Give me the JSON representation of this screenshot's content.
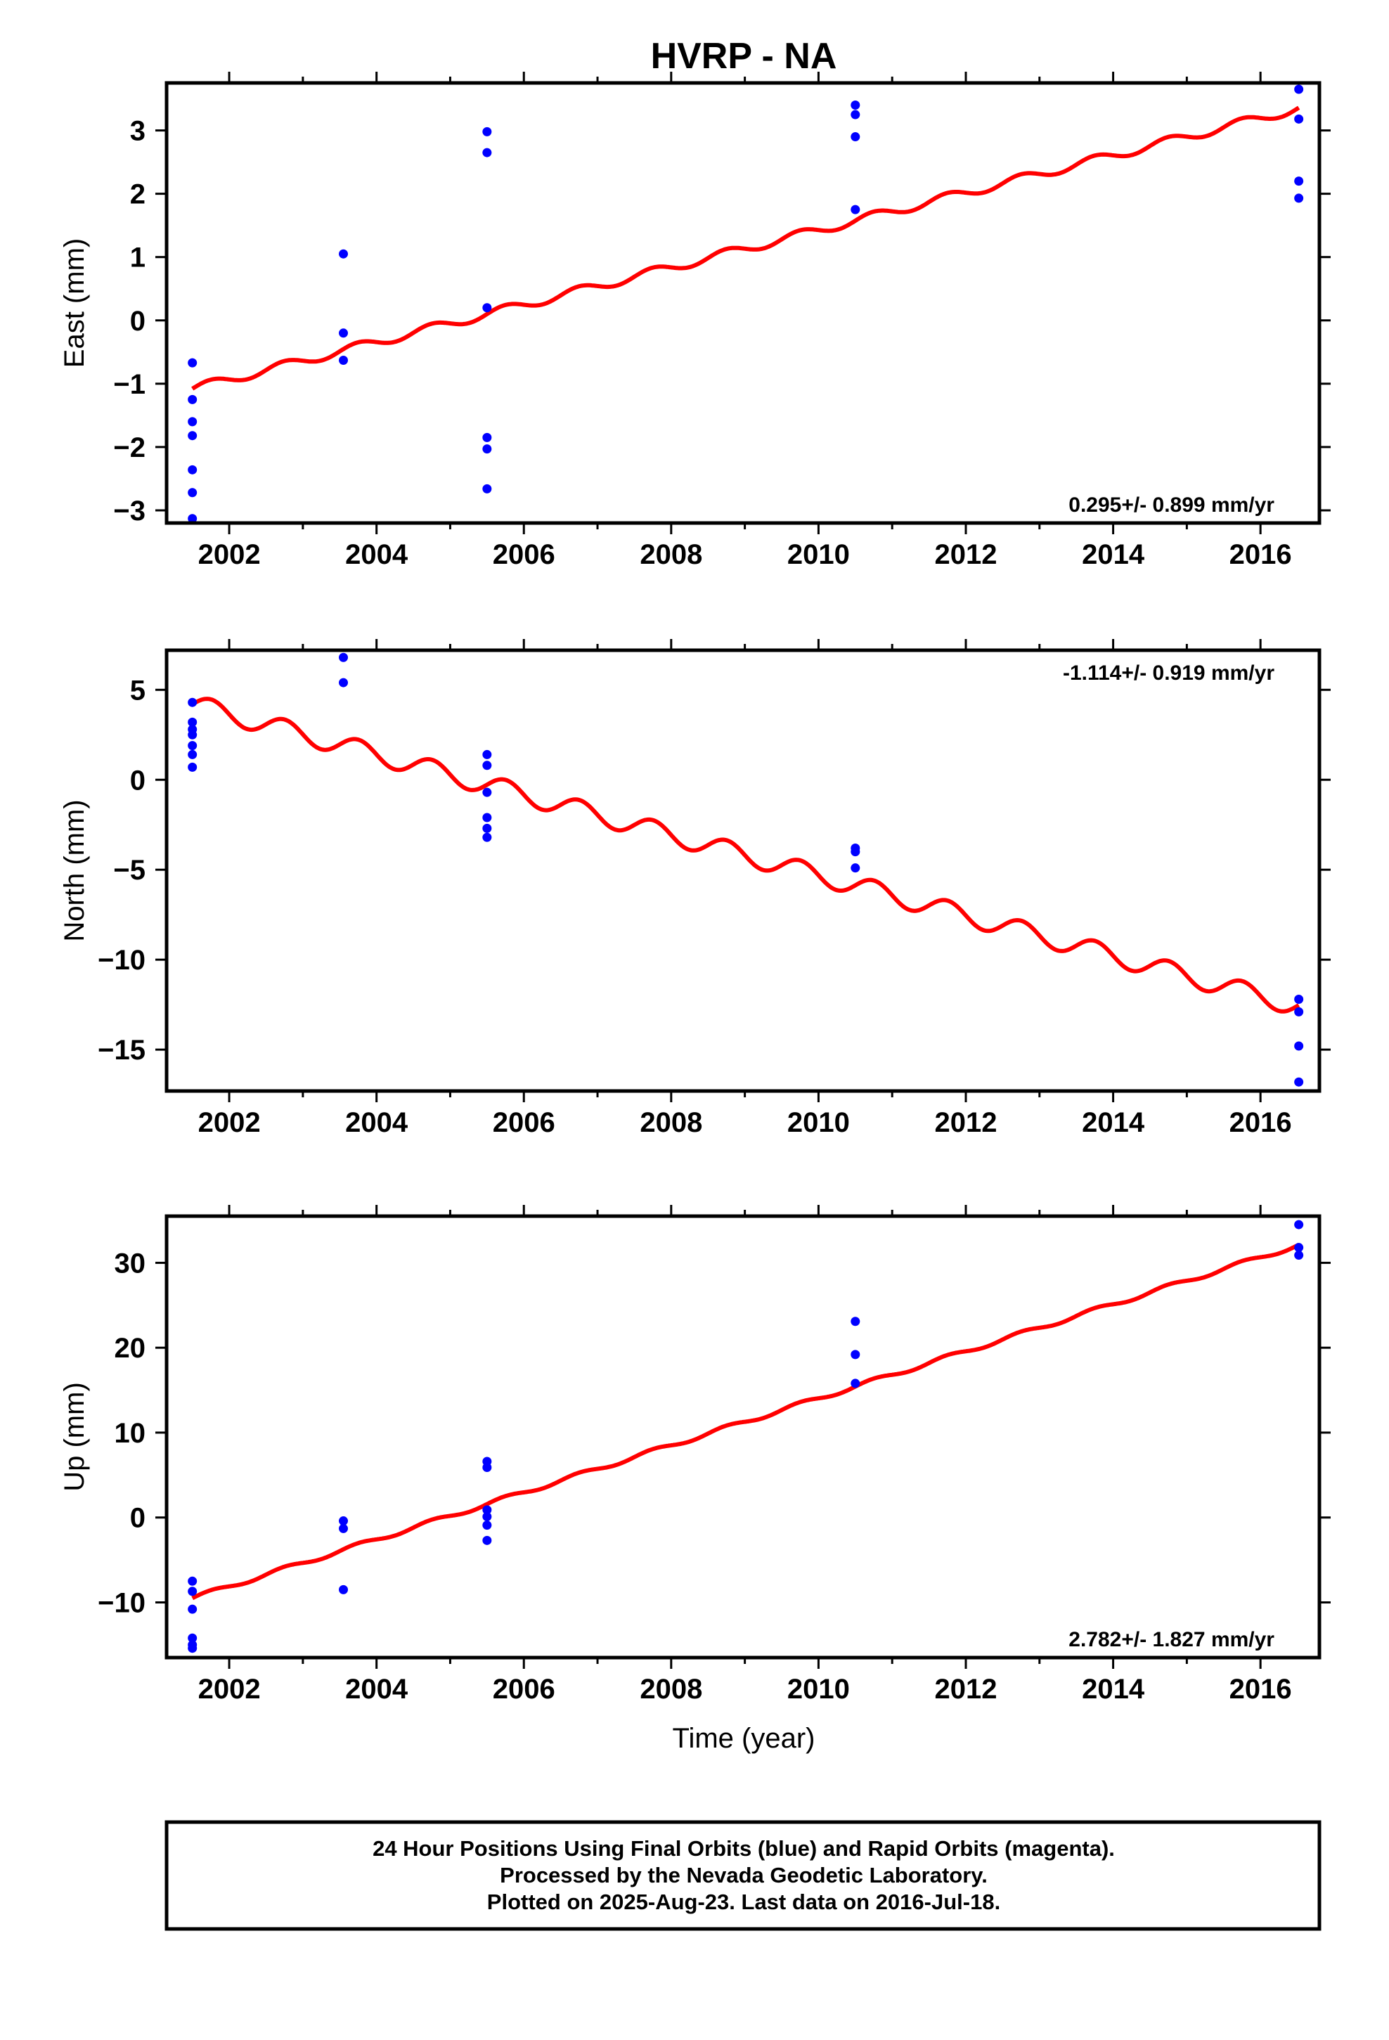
{
  "title": "HVRP - NA",
  "xlabel": "Time (year)",
  "colors": {
    "data": "#0000ff",
    "model": "#ff0000",
    "frame": "#000000"
  },
  "footer": {
    "lines": [
      "24 Hour Positions Using Final Orbits (blue) and Rapid Orbits (magenta).",
      "Processed by the Nevada Geodetic Laboratory.",
      "Plotted on 2025-Aug-23. Last data on 2016-Jul-18."
    ]
  },
  "chart_data": [
    {
      "type": "scatter",
      "ylabel": "East (mm)",
      "rate_label": "0.295+/- 0.899 mm/yr",
      "rate_position": "bottom-right",
      "xlim": [
        2001.15,
        2016.8
      ],
      "ylim": [
        -3.2,
        3.75
      ],
      "xticks": [
        2002,
        2004,
        2006,
        2008,
        2010,
        2012,
        2014,
        2016
      ],
      "yticks": [
        -3,
        -2,
        -1,
        0,
        1,
        2,
        3
      ],
      "series": [
        {
          "kind": "points",
          "x": [
            2001.5,
            2001.5,
            2001.5,
            2001.5,
            2001.5,
            2001.5,
            2001.5,
            2003.55,
            2003.55,
            2003.55,
            2005.5,
            2005.5,
            2005.5,
            2005.5,
            2005.5,
            2005.5,
            2010.5,
            2010.5,
            2010.5,
            2010.5,
            2016.52,
            2016.52,
            2016.52,
            2016.52
          ],
          "y": [
            -0.67,
            -1.25,
            -1.6,
            -1.82,
            -2.36,
            -2.72,
            -3.13,
            1.05,
            -0.2,
            -0.63,
            2.98,
            2.65,
            0.2,
            -1.85,
            -2.03,
            -2.66,
            3.4,
            3.25,
            2.9,
            1.75,
            3.65,
            3.18,
            2.2,
            1.93
          ]
        },
        {
          "kind": "model",
          "start": [
            2001.5,
            -1.08
          ],
          "end": [
            2016.52,
            3.35
          ],
          "annual_amplitude": 0.07,
          "semiannual_amplitude": 0
        }
      ]
    },
    {
      "type": "scatter",
      "ylabel": "North (mm)",
      "rate_label": "-1.114+/- 0.919 mm/yr",
      "rate_position": "top-right",
      "xlim": [
        2001.15,
        2016.8
      ],
      "ylim": [
        -17.3,
        7.2
      ],
      "xticks": [
        2002,
        2004,
        2006,
        2008,
        2010,
        2012,
        2014,
        2016
      ],
      "yticks": [
        -15,
        -10,
        -5,
        0,
        5
      ],
      "series": [
        {
          "kind": "points",
          "x": [
            2001.5,
            2001.5,
            2001.5,
            2001.5,
            2001.5,
            2001.5,
            2001.5,
            2003.55,
            2003.55,
            2005.5,
            2005.5,
            2005.5,
            2005.5,
            2005.5,
            2005.5,
            2010.5,
            2010.5,
            2010.5,
            2016.52,
            2016.52,
            2016.52,
            2016.52
          ],
          "y": [
            4.3,
            3.2,
            2.8,
            2.5,
            1.9,
            1.4,
            0.7,
            6.8,
            5.4,
            1.4,
            0.8,
            -0.7,
            -2.1,
            -2.7,
            -3.2,
            -3.8,
            -4.0,
            -4.9,
            -12.2,
            -12.9,
            -14.8,
            -16.8
          ],
          "note": "y values in mm"
        },
        {
          "kind": "model",
          "start": [
            2001.5,
            4.2
          ],
          "end": [
            2016.52,
            -12.6
          ],
          "annual_amplitude": 0.55,
          "semiannual_amplitude": 0
        }
      ]
    },
    {
      "type": "scatter",
      "ylabel": "Up (mm)",
      "rate_label": "2.782+/- 1.827 mm/yr",
      "rate_position": "bottom-right",
      "xlim": [
        2001.15,
        2016.8
      ],
      "ylim": [
        -16.5,
        35.5
      ],
      "xticks": [
        2002,
        2004,
        2006,
        2008,
        2010,
        2012,
        2014,
        2016
      ],
      "yticks": [
        -10,
        0,
        10,
        20,
        30
      ],
      "series": [
        {
          "kind": "points",
          "x": [
            2001.5,
            2001.5,
            2001.5,
            2001.5,
            2001.5,
            2001.5,
            2003.55,
            2003.55,
            2003.55,
            2005.5,
            2005.5,
            2005.5,
            2005.5,
            2005.5,
            2005.5,
            2010.5,
            2010.5,
            2010.5,
            2016.52,
            2016.52,
            2016.52
          ],
          "y": [
            -7.5,
            -8.7,
            -10.8,
            -14.2,
            -15.0,
            -15.4,
            -0.4,
            -1.3,
            -8.5,
            6.6,
            5.9,
            0.9,
            0.1,
            -0.9,
            -2.7,
            23.1,
            19.2,
            15.8,
            34.5,
            31.8,
            30.9
          ]
        },
        {
          "kind": "model",
          "start": [
            2001.5,
            -9.5
          ],
          "end": [
            2016.52,
            32.1
          ],
          "annual_amplitude": 0.25,
          "semiannual_amplitude": 0
        }
      ]
    }
  ]
}
